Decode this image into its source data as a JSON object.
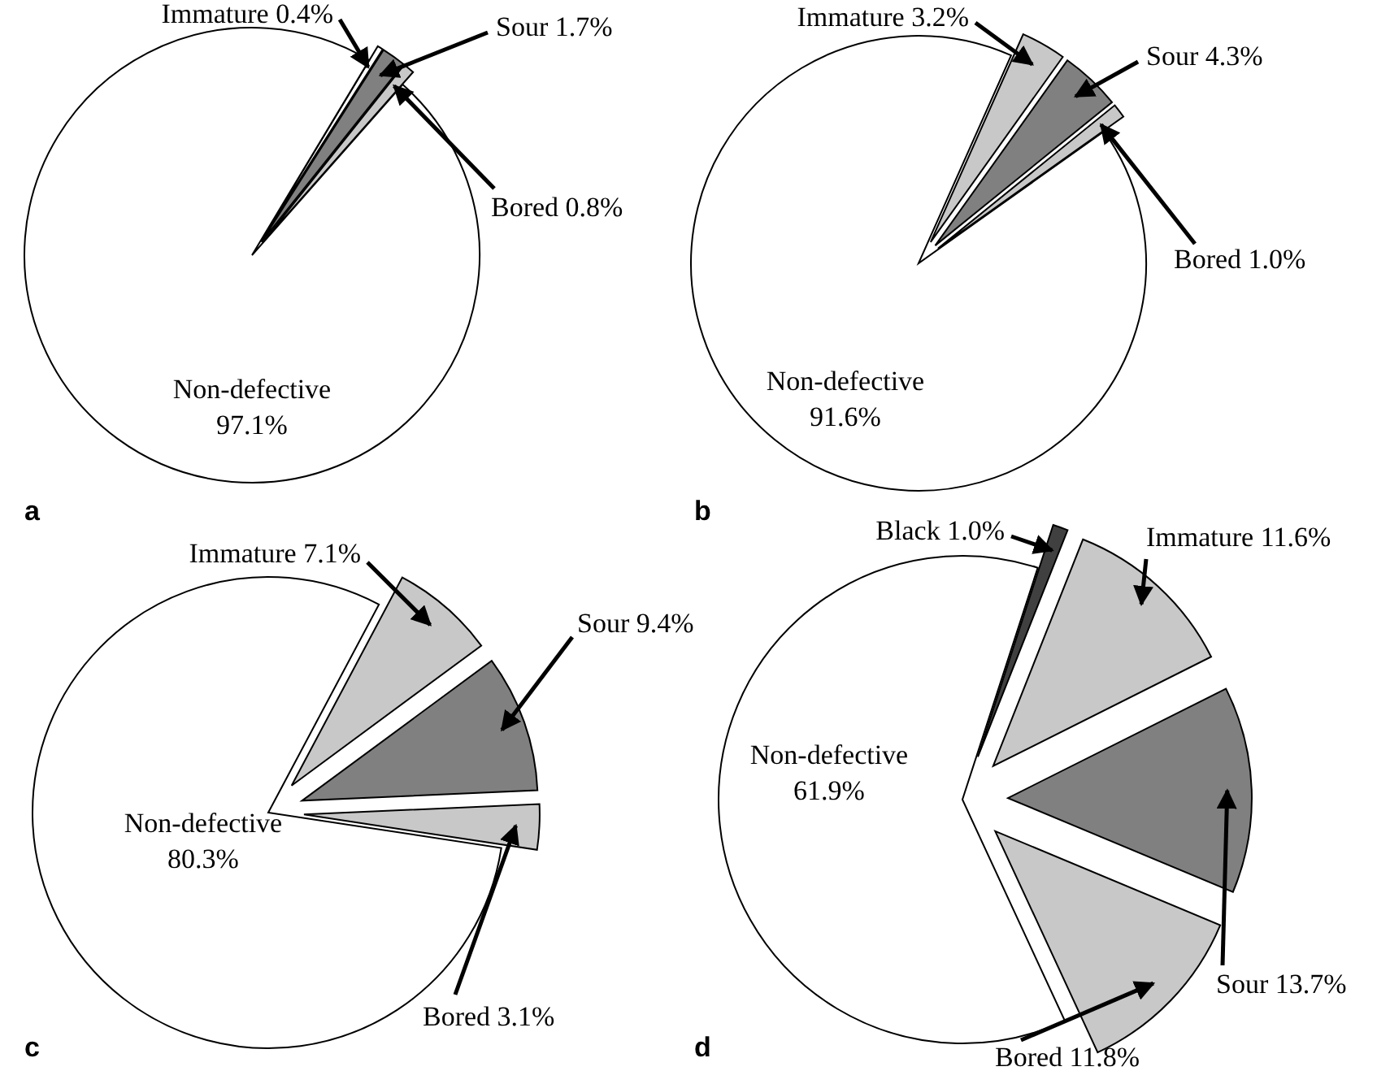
{
  "chart_data": [
    {
      "type": "pie",
      "title": "a",
      "categories": [
        "Immature",
        "Sour",
        "Bored",
        "Non-defective"
      ],
      "values": [
        0.4,
        1.7,
        0.8,
        97.1
      ],
      "value_labels": [
        "0.4%",
        "1.7%",
        "0.8%",
        "97.1%"
      ],
      "colors": [
        "#ffffff",
        "#808080",
        "#c8c8c8",
        "#ffffff"
      ]
    },
    {
      "type": "pie",
      "title": "b",
      "categories": [
        "Immature",
        "Sour",
        "Bored",
        "Non-defective"
      ],
      "values": [
        3.2,
        4.3,
        1.0,
        91.6
      ],
      "value_labels": [
        "3.2%",
        "4.3%",
        "1.0%",
        "91.6%"
      ],
      "colors": [
        "#c8c8c8",
        "#808080",
        "#c8c8c8",
        "#ffffff"
      ]
    },
    {
      "type": "pie",
      "title": "c",
      "categories": [
        "Immature",
        "Sour",
        "Bored",
        "Non-defective"
      ],
      "values": [
        7.1,
        9.4,
        3.1,
        80.3
      ],
      "value_labels": [
        "7.1%",
        "9.4%",
        "3.1%",
        "80.3%"
      ],
      "colors": [
        "#c8c8c8",
        "#808080",
        "#c8c8c8",
        "#ffffff"
      ]
    },
    {
      "type": "pie",
      "title": "d",
      "categories": [
        "Black",
        "Immature",
        "Sour",
        "Bored",
        "Non-defective"
      ],
      "values": [
        1.0,
        11.6,
        13.7,
        11.8,
        61.9
      ],
      "value_labels": [
        "1.0%",
        "11.6%",
        "13.7%",
        "11.8%",
        "61.9%"
      ],
      "colors": [
        "#404040",
        "#c8c8c8",
        "#808080",
        "#c8c8c8",
        "#ffffff"
      ]
    }
  ]
}
